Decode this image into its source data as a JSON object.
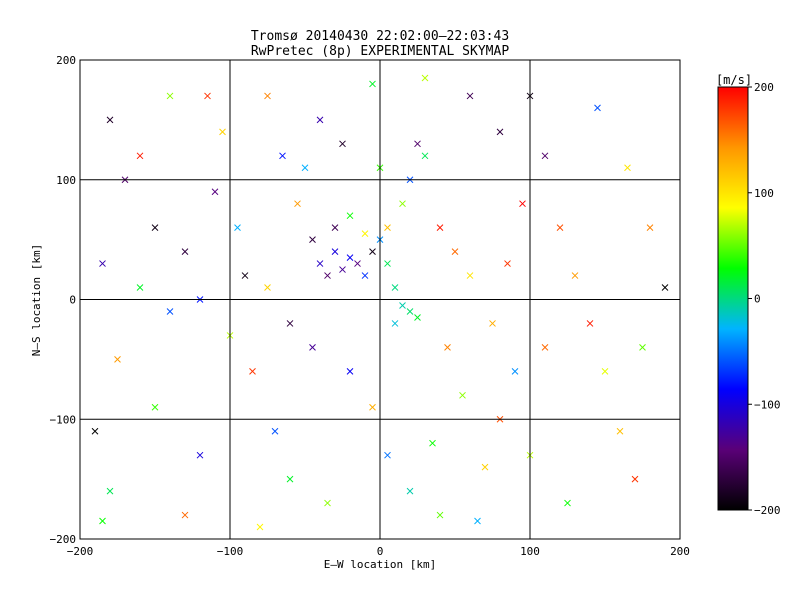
{
  "chart_data": {
    "type": "scatter",
    "title": "Tromsø 20140430 22:02:00–22:03:43",
    "subtitle": "RwPretec (8p) EXPERIMENTAL SKYMAP",
    "xlabel": "E–W location [km]",
    "ylabel": "N–S location [km]",
    "xlim": [
      -200,
      200
    ],
    "ylim": [
      -200,
      200
    ],
    "x_ticks": [
      -200,
      -100,
      0,
      100,
      200
    ],
    "y_ticks": [
      -200,
      -100,
      0,
      100,
      200
    ],
    "x_tick_labels": [
      "−200",
      "−100",
      "0",
      "100",
      "200"
    ],
    "y_tick_labels": [
      "−200",
      "−100",
      "0",
      "100",
      "200"
    ],
    "grid": true,
    "colorbar": {
      "label": "[m/s]",
      "range": [
        -200,
        200
      ],
      "ticks": [
        -200,
        -100,
        0,
        100,
        200
      ],
      "tick_labels": [
        "−200",
        "−100",
        "0",
        "100",
        "200"
      ],
      "colormap": [
        "#000000",
        "#5a0078",
        "#0000ff",
        "#00b4ff",
        "#00ff00",
        "#ffff00",
        "#ff9600",
        "#ff0000"
      ]
    },
    "points": [
      [
        -180,
        150,
        -180
      ],
      [
        -160,
        120,
        190
      ],
      [
        -140,
        170,
        60
      ],
      [
        -170,
        100,
        -150
      ],
      [
        -150,
        60,
        -190
      ],
      [
        -130,
        40,
        -170
      ],
      [
        -185,
        30,
        -120
      ],
      [
        -160,
        10,
        20
      ],
      [
        -140,
        -10,
        -60
      ],
      [
        -175,
        -50,
        140
      ],
      [
        -150,
        -90,
        40
      ],
      [
        -120,
        -130,
        -100
      ],
      [
        -180,
        -160,
        10
      ],
      [
        -130,
        -180,
        160
      ],
      [
        -105,
        140,
        110
      ],
      [
        -110,
        90,
        -140
      ],
      [
        -95,
        60,
        -30
      ],
      [
        -90,
        20,
        -190
      ],
      [
        -100,
        -30,
        70
      ],
      [
        -85,
        -60,
        180
      ],
      [
        -70,
        -110,
        -60
      ],
      [
        -60,
        -150,
        20
      ],
      [
        -80,
        -190,
        90
      ],
      [
        -65,
        120,
        -80
      ],
      [
        -55,
        80,
        140
      ],
      [
        -45,
        50,
        -170
      ],
      [
        -40,
        30,
        -110
      ],
      [
        -35,
        20,
        -150
      ],
      [
        -30,
        40,
        -100
      ],
      [
        -25,
        25,
        -130
      ],
      [
        -20,
        35,
        -90
      ],
      [
        -15,
        30,
        -140
      ],
      [
        -10,
        20,
        -70
      ],
      [
        -5,
        40,
        -190
      ],
      [
        -30,
        60,
        -160
      ],
      [
        -20,
        70,
        30
      ],
      [
        -10,
        55,
        90
      ],
      [
        0,
        50,
        -40
      ],
      [
        5,
        30,
        10
      ],
      [
        10,
        10,
        0
      ],
      [
        15,
        -5,
        -10
      ],
      [
        20,
        -10,
        5
      ],
      [
        25,
        -15,
        20
      ],
      [
        10,
        -20,
        -20
      ],
      [
        5,
        60,
        120
      ],
      [
        15,
        80,
        60
      ],
      [
        20,
        100,
        -60
      ],
      [
        25,
        130,
        -150
      ],
      [
        -25,
        130,
        -180
      ],
      [
        -40,
        150,
        -120
      ],
      [
        -50,
        110,
        -30
      ],
      [
        0,
        110,
        40
      ],
      [
        30,
        120,
        10
      ],
      [
        40,
        60,
        190
      ],
      [
        50,
        40,
        160
      ],
      [
        60,
        20,
        100
      ],
      [
        45,
        -40,
        150
      ],
      [
        55,
        -80,
        60
      ],
      [
        35,
        -120,
        30
      ],
      [
        20,
        -160,
        -10
      ],
      [
        40,
        -180,
        50
      ],
      [
        70,
        -140,
        110
      ],
      [
        80,
        -100,
        170
      ],
      [
        90,
        -60,
        -40
      ],
      [
        75,
        -20,
        130
      ],
      [
        85,
        30,
        180
      ],
      [
        95,
        80,
        200
      ],
      [
        80,
        140,
        -170
      ],
      [
        100,
        170,
        -190
      ],
      [
        110,
        120,
        -150
      ],
      [
        120,
        60,
        170
      ],
      [
        130,
        20,
        140
      ],
      [
        140,
        -20,
        190
      ],
      [
        150,
        -60,
        80
      ],
      [
        160,
        -110,
        120
      ],
      [
        170,
        -150,
        180
      ],
      [
        125,
        -170,
        30
      ],
      [
        145,
        160,
        -60
      ],
      [
        165,
        110,
        100
      ],
      [
        180,
        60,
        150
      ],
      [
        190,
        10,
        -200
      ],
      [
        175,
        -40,
        50
      ],
      [
        110,
        -40,
        160
      ],
      [
        100,
        -130,
        70
      ],
      [
        60,
        170,
        -160
      ],
      [
        -45,
        -40,
        -130
      ],
      [
        -60,
        -20,
        -170
      ],
      [
        -75,
        10,
        110
      ],
      [
        -20,
        -60,
        -90
      ],
      [
        -5,
        -90,
        130
      ],
      [
        5,
        -130,
        -50
      ],
      [
        -35,
        -170,
        60
      ],
      [
        -120,
        0,
        -80
      ],
      [
        -115,
        170,
        180
      ],
      [
        -190,
        -110,
        -200
      ],
      [
        -185,
        -185,
        30
      ],
      [
        -75,
        170,
        150
      ],
      [
        -5,
        180,
        20
      ],
      [
        30,
        185,
        70
      ],
      [
        65,
        -185,
        -30
      ]
    ]
  }
}
